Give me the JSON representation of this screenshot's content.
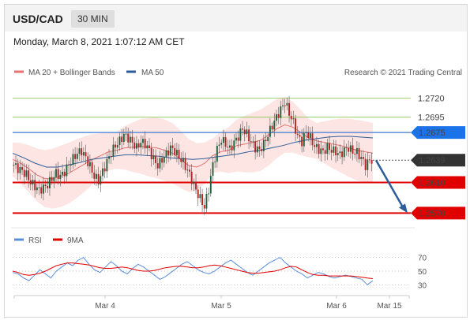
{
  "header": {
    "pair": "USD/CAD",
    "timeframe": "30 MIN"
  },
  "date_line": "Monday, March 8, 2021 1:07:12 AM CET",
  "legend": {
    "ma20": "MA 20 + Bollinger Bands",
    "ma50": "MA 50",
    "credit": "Research © 2021 Trading Central",
    "rsi": "RSI",
    "nine_ma": "9MA"
  },
  "colors": {
    "up_candle": "#1f5f3a",
    "down_candle": "#b22222",
    "ma20": "#e57373",
    "band_fill": "#fde0de",
    "ma50": "#2e5c9a",
    "resistance_green": "#8bc34a",
    "pivot_blue": "#5b8dd9",
    "support_red": "#e00000",
    "current": "#333333",
    "forecast": "#2e5c9a",
    "rsi": "#5b8dd9",
    "rsi_ma": "#e00000"
  },
  "chart_data": {
    "type": "candlestick",
    "y_range": [
      1.2555,
      1.2745
    ],
    "x_labels": [
      "Mar 4",
      "Mar 5",
      "Mar 6",
      "Mar 15"
    ],
    "levels": [
      {
        "label": "1.2720",
        "value": 1.272,
        "kind": "resistance"
      },
      {
        "label": "1.2695",
        "value": 1.2695,
        "kind": "resistance"
      },
      {
        "label": "1.2675",
        "value": 1.2675,
        "kind": "pivot"
      },
      {
        "label": "1.2639",
        "value": 1.2639,
        "kind": "current"
      },
      {
        "label": "1.2610",
        "value": 1.261,
        "kind": "support"
      },
      {
        "label": "1.2570",
        "value": 1.257,
        "kind": "support"
      }
    ],
    "price_path": [
      1.2633,
      1.2628,
      1.2625,
      1.262,
      1.261,
      1.2605,
      1.26,
      1.2603,
      1.2607,
      1.2615,
      1.2622,
      1.2618,
      1.2624,
      1.2633,
      1.2641,
      1.2648,
      1.2651,
      1.2642,
      1.2631,
      1.2618,
      1.2612,
      1.2624,
      1.2637,
      1.2649,
      1.2658,
      1.2664,
      1.2672,
      1.2668,
      1.2662,
      1.2655,
      1.2663,
      1.266,
      1.2652,
      1.264,
      1.2632,
      1.264,
      1.2647,
      1.2655,
      1.2651,
      1.2643,
      1.2636,
      1.2626,
      1.2614,
      1.26,
      1.2589,
      1.2578,
      1.2601,
      1.2633,
      1.2653,
      1.2666,
      1.266,
      1.2653,
      1.2662,
      1.267,
      1.268,
      1.2673,
      1.2663,
      1.2655,
      1.2652,
      1.266,
      1.2672,
      1.2684,
      1.2695,
      1.2705,
      1.2715,
      1.27,
      1.2688,
      1.267,
      1.2663,
      1.2676,
      1.2668,
      1.2657,
      1.2653,
      1.265,
      1.2656,
      1.2652,
      1.265,
      1.2646,
      1.2652,
      1.2655,
      1.265,
      1.2649,
      1.2642,
      1.2632,
      1.2639
    ],
    "ma20_path": [
      1.264,
      1.2635,
      1.2628,
      1.262,
      1.2615,
      1.2615,
      1.2618,
      1.2622,
      1.2628,
      1.2634,
      1.264,
      1.2645,
      1.265,
      1.2652,
      1.2655,
      1.2656,
      1.2657,
      1.2656,
      1.2655,
      1.2652,
      1.2648,
      1.264,
      1.2632,
      1.263,
      1.2635,
      1.2645,
      1.265,
      1.2652,
      1.2658,
      1.266,
      1.2662,
      1.2665,
      1.2672,
      1.268,
      1.2685,
      1.2682,
      1.2675,
      1.2668,
      1.2664,
      1.2662,
      1.266,
      1.2658,
      1.2655,
      1.2652,
      1.265,
      1.2648
    ],
    "ma50_path": [
      1.2648,
      1.2642,
      1.2635,
      1.263,
      1.263,
      1.2633,
      1.2636,
      1.264,
      1.2642,
      1.2644,
      1.2646,
      1.2646,
      1.2645,
      1.2644,
      1.2642,
      1.2641,
      1.264,
      1.2641,
      1.2643,
      1.2645,
      1.2647,
      1.265,
      1.2652,
      1.2655,
      1.2658,
      1.2662,
      1.2665,
      1.2667,
      1.2669,
      1.267,
      1.267,
      1.2669,
      1.2668
    ],
    "forecast": {
      "from": 1.2639,
      "to": 1.257
    },
    "rsi": {
      "range": [
        20,
        80
      ],
      "ticks": [
        "70",
        "50",
        "30"
      ],
      "rsi_path": [
        48,
        46,
        40,
        36,
        44,
        52,
        46,
        40,
        50,
        56,
        62,
        58,
        66,
        70,
        60,
        52,
        48,
        56,
        64,
        58,
        50,
        46,
        54,
        60,
        56,
        50,
        44,
        38,
        42,
        48,
        54,
        60,
        64,
        58,
        52,
        48,
        46,
        50,
        56,
        62,
        66,
        60,
        54,
        48,
        44,
        50,
        56,
        62,
        66,
        70,
        62,
        56,
        50,
        46,
        40,
        44,
        48,
        46,
        42,
        40,
        42,
        44,
        42,
        40,
        38,
        30,
        36
      ],
      "ma_path": [
        50,
        48,
        45,
        44,
        45,
        47,
        50,
        54,
        58,
        60,
        62,
        62,
        61,
        60,
        59,
        57,
        55,
        54,
        54,
        55,
        56,
        55,
        53,
        51,
        50,
        50,
        51,
        53,
        55,
        56,
        57,
        57,
        56,
        55,
        55,
        56,
        58,
        59,
        58,
        56,
        54,
        52,
        50,
        48,
        47,
        47,
        48,
        49,
        50,
        52,
        55,
        57,
        56,
        52,
        48,
        45,
        44,
        44,
        43,
        43,
        43,
        43,
        43,
        42,
        41,
        40,
        39
      ]
    }
  }
}
